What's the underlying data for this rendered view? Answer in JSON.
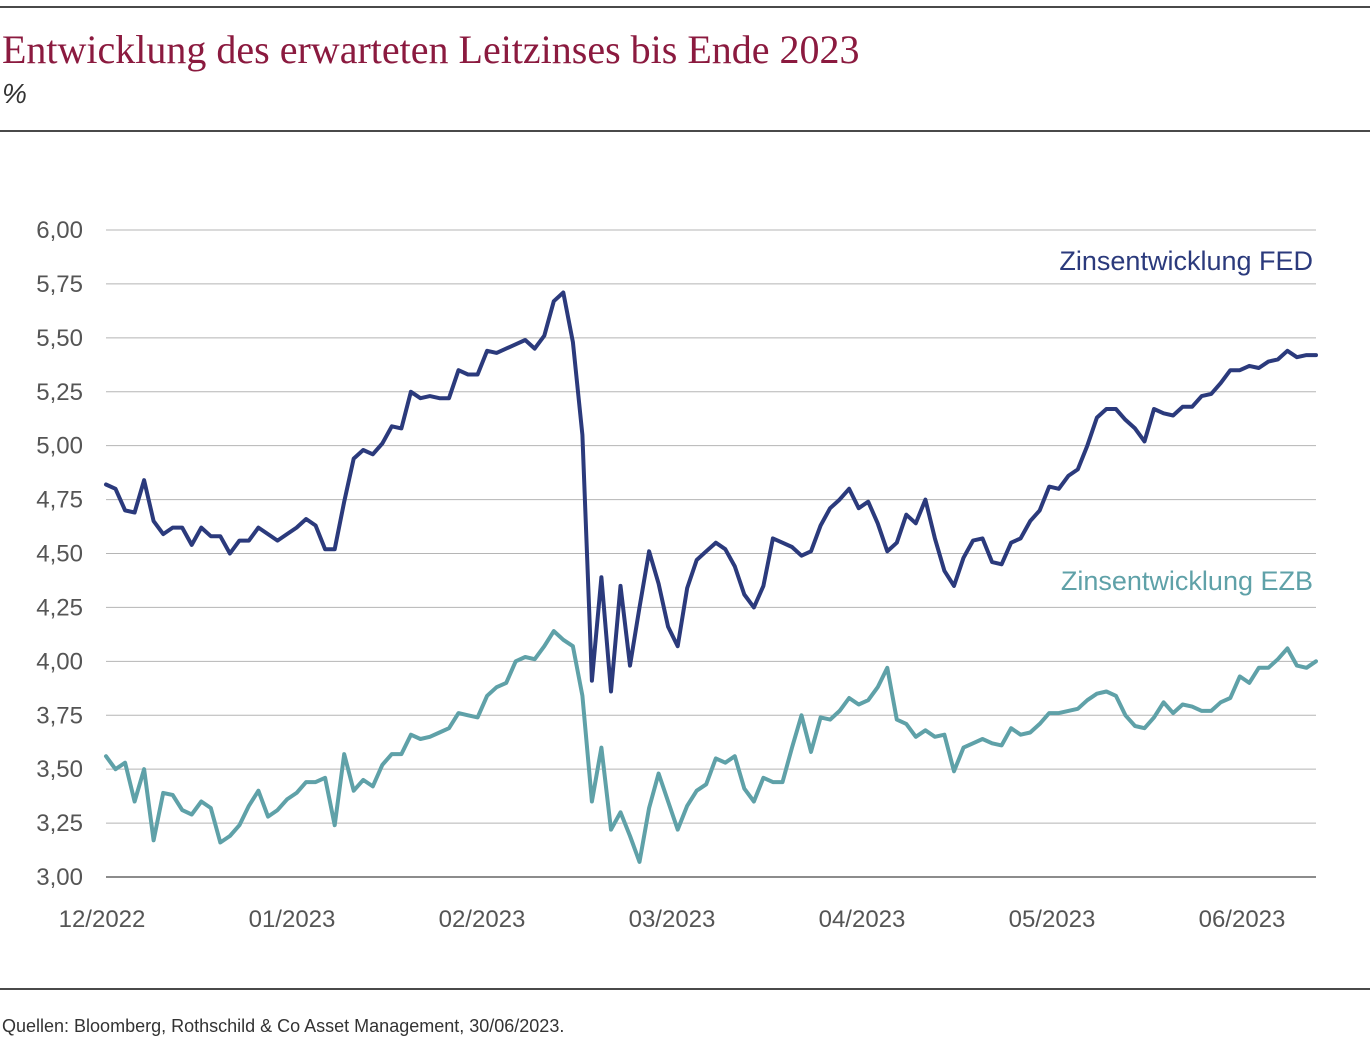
{
  "header": {
    "title": "Entwicklung des erwarteten Leitzinses bis Ende 2023",
    "subtitle": "%"
  },
  "footer": {
    "source": "Quellen: Bloomberg, Rothschild & Co Asset Management, 30/06/2023."
  },
  "chart_data": {
    "type": "line",
    "ylabel": "%",
    "ylim": [
      3.0,
      6.0
    ],
    "y_ticks": [
      "3,00",
      "3,25",
      "3,50",
      "3,75",
      "4,00",
      "4,25",
      "4,50",
      "4,75",
      "5,00",
      "5,25",
      "5,50",
      "5,75",
      "6,00"
    ],
    "y_tick_values": [
      3.0,
      3.25,
      3.5,
      3.75,
      4.0,
      4.25,
      4.5,
      4.75,
      5.0,
      5.25,
      5.5,
      5.75,
      6.0
    ],
    "x_ticks": [
      "12/2022",
      "01/2023",
      "02/2023",
      "03/2023",
      "04/2023",
      "05/2023",
      "06/2023"
    ],
    "grid": true,
    "colors": {
      "fed": "#2b3a7c",
      "ezb": "#5fa1a8",
      "title": "#8b1a3f",
      "grid": "#b5b5b5"
    },
    "series": [
      {
        "name": "Zinsentwicklung FED",
        "key": "fed",
        "values": [
          4.82,
          4.8,
          4.7,
          4.69,
          4.84,
          4.65,
          4.59,
          4.62,
          4.62,
          4.54,
          4.62,
          4.58,
          4.58,
          4.5,
          4.56,
          4.56,
          4.62,
          4.59,
          4.56,
          4.59,
          4.62,
          4.66,
          4.63,
          4.52,
          4.52,
          4.74,
          4.94,
          4.98,
          4.96,
          5.01,
          5.09,
          5.08,
          5.25,
          5.22,
          5.23,
          5.22,
          5.22,
          5.35,
          5.33,
          5.33,
          5.44,
          5.43,
          5.45,
          5.47,
          5.49,
          5.45,
          5.51,
          5.67,
          5.71,
          5.48,
          5.05,
          3.91,
          4.39,
          3.86,
          4.35,
          3.98,
          4.25,
          4.51,
          4.36,
          4.16,
          4.07,
          4.34,
          4.47,
          4.51,
          4.55,
          4.52,
          4.44,
          4.31,
          4.25,
          4.35,
          4.57,
          4.55,
          4.53,
          4.49,
          4.51,
          4.63,
          4.71,
          4.75,
          4.8,
          4.71,
          4.74,
          4.64,
          4.51,
          4.55,
          4.68,
          4.64,
          4.75,
          4.57,
          4.42,
          4.35,
          4.48,
          4.56,
          4.57,
          4.46,
          4.45,
          4.55,
          4.57,
          4.65,
          4.7,
          4.81,
          4.8,
          4.86,
          4.89,
          5.0,
          5.13,
          5.17,
          5.17,
          5.12,
          5.08,
          5.02,
          5.17,
          5.15,
          5.14,
          5.18,
          5.18,
          5.23,
          5.24,
          5.29,
          5.35,
          5.35,
          5.37,
          5.36,
          5.39,
          5.4,
          5.44,
          5.41,
          5.42,
          5.42
        ]
      },
      {
        "name": "Zinsentwicklung EZB",
        "key": "ezb",
        "values": [
          3.56,
          3.5,
          3.53,
          3.35,
          3.5,
          3.17,
          3.39,
          3.38,
          3.31,
          3.29,
          3.35,
          3.32,
          3.16,
          3.19,
          3.24,
          3.33,
          3.4,
          3.28,
          3.31,
          3.36,
          3.39,
          3.44,
          3.44,
          3.46,
          3.24,
          3.57,
          3.4,
          3.45,
          3.42,
          3.52,
          3.57,
          3.57,
          3.66,
          3.64,
          3.65,
          3.67,
          3.69,
          3.76,
          3.75,
          3.74,
          3.84,
          3.88,
          3.9,
          4.0,
          4.02,
          4.01,
          4.07,
          4.14,
          4.1,
          4.07,
          3.84,
          3.35,
          3.6,
          3.22,
          3.3,
          3.19,
          3.07,
          3.32,
          3.48,
          3.35,
          3.22,
          3.33,
          3.4,
          3.43,
          3.55,
          3.53,
          3.56,
          3.41,
          3.35,
          3.46,
          3.44,
          3.44,
          3.6,
          3.75,
          3.58,
          3.74,
          3.73,
          3.77,
          3.83,
          3.8,
          3.82,
          3.88,
          3.97,
          3.73,
          3.71,
          3.65,
          3.68,
          3.65,
          3.66,
          3.49,
          3.6,
          3.62,
          3.64,
          3.62,
          3.61,
          3.69,
          3.66,
          3.67,
          3.71,
          3.76,
          3.76,
          3.77,
          3.78,
          3.82,
          3.85,
          3.86,
          3.84,
          3.75,
          3.7,
          3.69,
          3.74,
          3.81,
          3.76,
          3.8,
          3.79,
          3.77,
          3.77,
          3.81,
          3.83,
          3.93,
          3.9,
          3.97,
          3.97,
          4.01,
          4.06,
          3.98,
          3.97,
          4.0
        ]
      }
    ]
  }
}
